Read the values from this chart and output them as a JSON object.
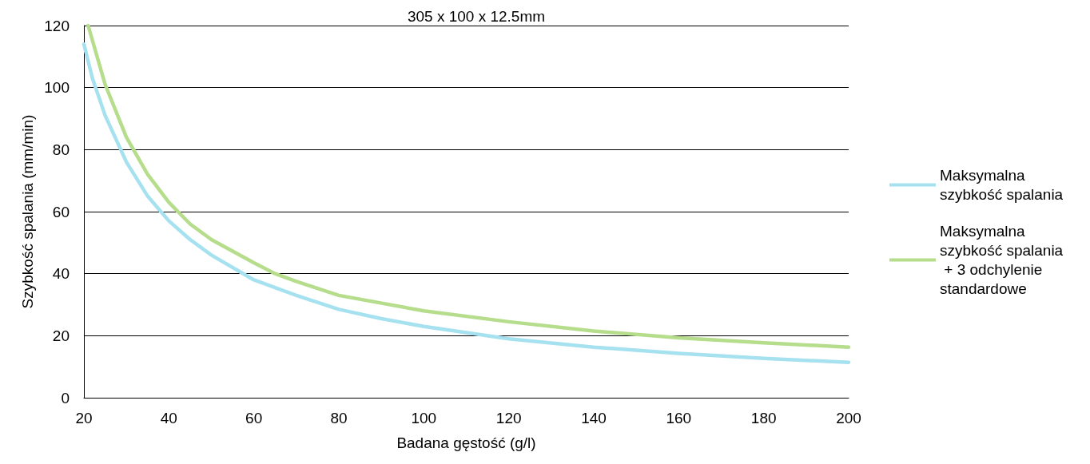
{
  "chart_data": {
    "type": "line",
    "title": "305 x 100 x 12.5mm",
    "xlabel": "Badana gęstość (g/l)",
    "ylabel": "Szybkość spalania (mm/min)",
    "xlim": [
      20,
      200
    ],
    "xticks": [
      20,
      40,
      60,
      80,
      100,
      120,
      140,
      160,
      180,
      200
    ],
    "ylim": [
      0,
      120
    ],
    "yticks": [
      0,
      20,
      40,
      60,
      80,
      100,
      120
    ],
    "grid": "y",
    "legend": "right",
    "marker": "none",
    "line_style": "solid",
    "series": [
      {
        "name": "Maksymalna szybkość spalania",
        "color": "#a6e1f0",
        "x": [
          20,
          22,
          25,
          30,
          35,
          40,
          45,
          50,
          60,
          70,
          80,
          90,
          100,
          120,
          140,
          160,
          180,
          200
        ],
        "values": [
          114,
          103,
          91,
          76,
          65,
          57,
          51,
          46,
          38,
          33,
          28.5,
          25.5,
          23,
          19,
          16.3,
          14.3,
          12.7,
          11.4
        ]
      },
      {
        "name": "Maksymalna szybkość spalania + 3 odchylenie standardowe",
        "color": "#b5dd8c",
        "x": [
          21,
          25,
          30,
          35,
          40,
          45,
          50,
          60,
          65,
          70,
          80,
          100,
          120,
          140,
          160,
          180,
          200
        ],
        "values": [
          120,
          101,
          84,
          72,
          63,
          56,
          51,
          43.5,
          40,
          37.5,
          33,
          28,
          24.5,
          21.5,
          19.3,
          17.7,
          16.3
        ]
      }
    ]
  }
}
